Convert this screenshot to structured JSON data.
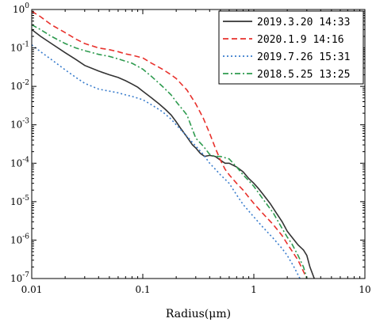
{
  "chart_data": {
    "type": "line",
    "title": "",
    "xlabel": "Radius(μm)",
    "ylabel": "",
    "xscale": "log",
    "yscale": "log",
    "xlim": [
      0.01,
      10
    ],
    "ylim": [
      1e-07,
      1
    ],
    "grid": false,
    "legend_position": "top-right",
    "x_ticks": [
      0.01,
      0.1,
      1,
      10
    ],
    "x_tick_labels": [
      "0.01",
      "0.1",
      "1",
      "10"
    ],
    "y_ticks": [
      1e-07,
      1e-06,
      1e-05,
      0.0001,
      0.001,
      0.01,
      0.1,
      1
    ],
    "y_tick_labels": [
      {
        "base": "10",
        "exp": "-7"
      },
      {
        "base": "10",
        "exp": "-6"
      },
      {
        "base": "10",
        "exp": "-5"
      },
      {
        "base": "10",
        "exp": "-4"
      },
      {
        "base": "10",
        "exp": "-3"
      },
      {
        "base": "10",
        "exp": "-2"
      },
      {
        "base": "10",
        "exp": "-1"
      },
      {
        "base": "10",
        "exp": "0"
      }
    ],
    "series": [
      {
        "name": "2019.3.20 14:33",
        "color": "#333333",
        "dash": "solid",
        "x": [
          0.01,
          0.012,
          0.015,
          0.02,
          0.025,
          0.03,
          0.04,
          0.05,
          0.06,
          0.07,
          0.08,
          0.09,
          0.1,
          0.12,
          0.14,
          0.16,
          0.18,
          0.2,
          0.22,
          0.25,
          0.28,
          0.3,
          0.33,
          0.36,
          0.4,
          0.45,
          0.5,
          0.55,
          0.6,
          0.7,
          0.8,
          0.9,
          1.0,
          1.1,
          1.2,
          1.4,
          1.6,
          1.8,
          2.0,
          2.2,
          2.5,
          2.8,
          3.0,
          3.2,
          3.5
        ],
        "y": [
          0.3,
          0.2,
          0.13,
          0.075,
          0.05,
          0.035,
          0.025,
          0.02,
          0.017,
          0.014,
          0.0115,
          0.0095,
          0.0075,
          0.005,
          0.0035,
          0.0025,
          0.0018,
          0.0012,
          0.0008,
          0.00048,
          0.0003,
          0.00025,
          0.00018,
          0.00015,
          0.00016,
          0.00015,
          0.00012,
          0.0001,
          0.0001,
          8e-05,
          6e-05,
          4e-05,
          3e-05,
          2.2e-05,
          1.6e-05,
          9e-06,
          5e-06,
          3e-06,
          1.7e-06,
          1.2e-06,
          7.5e-07,
          5.5e-07,
          4e-07,
          2e-07,
          1e-07
        ]
      },
      {
        "name": "2020.1.9  14:16",
        "color": "#e8312c",
        "dash": "dashed",
        "x": [
          0.01,
          0.012,
          0.015,
          0.02,
          0.025,
          0.03,
          0.04,
          0.05,
          0.06,
          0.07,
          0.08,
          0.1,
          0.12,
          0.15,
          0.18,
          0.2,
          0.25,
          0.3,
          0.35,
          0.4,
          0.45,
          0.5,
          0.55,
          0.6,
          0.7,
          0.8,
          0.9,
          1.0,
          1.2,
          1.5,
          1.8,
          2.0,
          2.5,
          3.0
        ],
        "y": [
          0.9,
          0.65,
          0.4,
          0.25,
          0.17,
          0.13,
          0.1,
          0.09,
          0.08,
          0.07,
          0.065,
          0.055,
          0.04,
          0.028,
          0.02,
          0.016,
          0.008,
          0.0035,
          0.0015,
          0.0006,
          0.00025,
          0.00012,
          7e-05,
          5e-05,
          3e-05,
          2e-05,
          1.3e-05,
          9e-06,
          5e-06,
          2.5e-06,
          1.3e-06,
          8e-07,
          3e-07,
          1e-07
        ]
      },
      {
        "name": "2019.7.26 15:31",
        "color": "#3a7dcd",
        "dash": "dotted",
        "x": [
          0.01,
          0.012,
          0.015,
          0.02,
          0.025,
          0.03,
          0.04,
          0.05,
          0.06,
          0.07,
          0.08,
          0.1,
          0.12,
          0.15,
          0.18,
          0.2,
          0.25,
          0.3,
          0.35,
          0.4,
          0.45,
          0.5,
          0.6,
          0.7,
          0.8,
          1.0,
          1.2,
          1.5,
          1.8,
          2.0,
          2.3,
          2.6
        ],
        "y": [
          0.12,
          0.08,
          0.05,
          0.027,
          0.017,
          0.012,
          0.0085,
          0.0075,
          0.0068,
          0.006,
          0.0055,
          0.0045,
          0.0033,
          0.0022,
          0.0014,
          0.001,
          0.0005,
          0.00028,
          0.00017,
          0.0001,
          7e-05,
          5e-05,
          3e-05,
          1.5e-05,
          8.5e-06,
          4e-06,
          2.2e-06,
          1.1e-06,
          6e-07,
          4e-07,
          2e-07,
          1e-07
        ]
      },
      {
        "name": "2018.5.25 13:25",
        "color": "#2e9b4f",
        "dash": "dashdot",
        "x": [
          0.01,
          0.012,
          0.015,
          0.02,
          0.025,
          0.03,
          0.04,
          0.05,
          0.06,
          0.07,
          0.08,
          0.1,
          0.12,
          0.15,
          0.18,
          0.2,
          0.25,
          0.3,
          0.35,
          0.4,
          0.45,
          0.5,
          0.6,
          0.7,
          0.8,
          0.9,
          1.0,
          1.2,
          1.5,
          1.8,
          2.0,
          2.2,
          2.5,
          2.8,
          3.0
        ],
        "y": [
          0.4,
          0.3,
          0.2,
          0.13,
          0.1,
          0.085,
          0.068,
          0.06,
          0.052,
          0.045,
          0.04,
          0.028,
          0.018,
          0.01,
          0.006,
          0.004,
          0.0018,
          0.00045,
          0.00028,
          0.00017,
          0.00015,
          0.00015,
          0.00013,
          8e-05,
          5e-05,
          3.5e-05,
          2.5e-05,
          1.2e-05,
          5e-06,
          2e-06,
          1.2e-06,
          8e-07,
          4e-07,
          2e-07,
          1e-07
        ]
      }
    ]
  }
}
